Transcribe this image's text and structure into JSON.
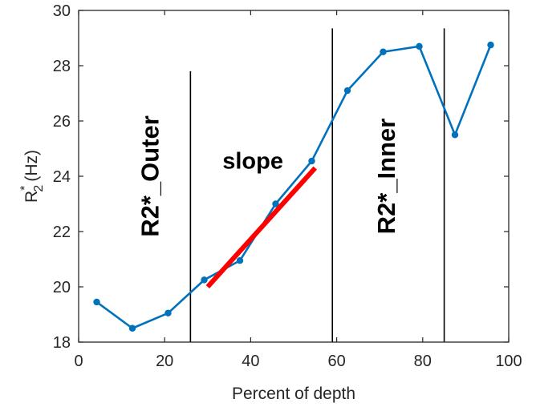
{
  "chart_data": {
    "type": "line",
    "xlabel": "Percent of depth",
    "ylabel": {
      "main": "R",
      "superscript": "*",
      "subscript": "2",
      "unit": "(Hz)"
    },
    "xlim": [
      0,
      100
    ],
    "ylim": [
      18,
      30
    ],
    "xticks": [
      0,
      20,
      40,
      60,
      80,
      100
    ],
    "yticks": [
      18,
      20,
      22,
      24,
      26,
      28,
      30
    ],
    "grid": false,
    "series": [
      {
        "color": "#0072BD",
        "x": [
          4.2,
          12.5,
          20.8,
          29.2,
          37.5,
          45.8,
          54.2,
          62.5,
          70.8,
          79.2,
          87.5,
          95.8
        ],
        "y": [
          19.45,
          18.5,
          19.05,
          20.25,
          20.95,
          23.0,
          24.55,
          27.1,
          28.5,
          28.7,
          25.5,
          28.75
        ]
      }
    ],
    "fit_line": {
      "label": "slope",
      "color": "#FF0000",
      "x": [
        30,
        55
      ],
      "y": [
        20.0,
        24.3
      ]
    },
    "vertical_lines": [
      {
        "x": 26.0,
        "y_top": 27.8
      },
      {
        "x": 59.0,
        "y_top": 29.35
      },
      {
        "x": 85.0,
        "y_top": 29.35
      }
    ],
    "annotations": [
      {
        "text": "R2*_Outer",
        "x": 17,
        "y": 24,
        "rotation": -90
      },
      {
        "text": "slope",
        "x": 40.5,
        "y": 24.5,
        "rotation": 0
      },
      {
        "text": "R2*_Inner",
        "x": 72,
        "y": 24,
        "rotation": -90
      }
    ]
  }
}
